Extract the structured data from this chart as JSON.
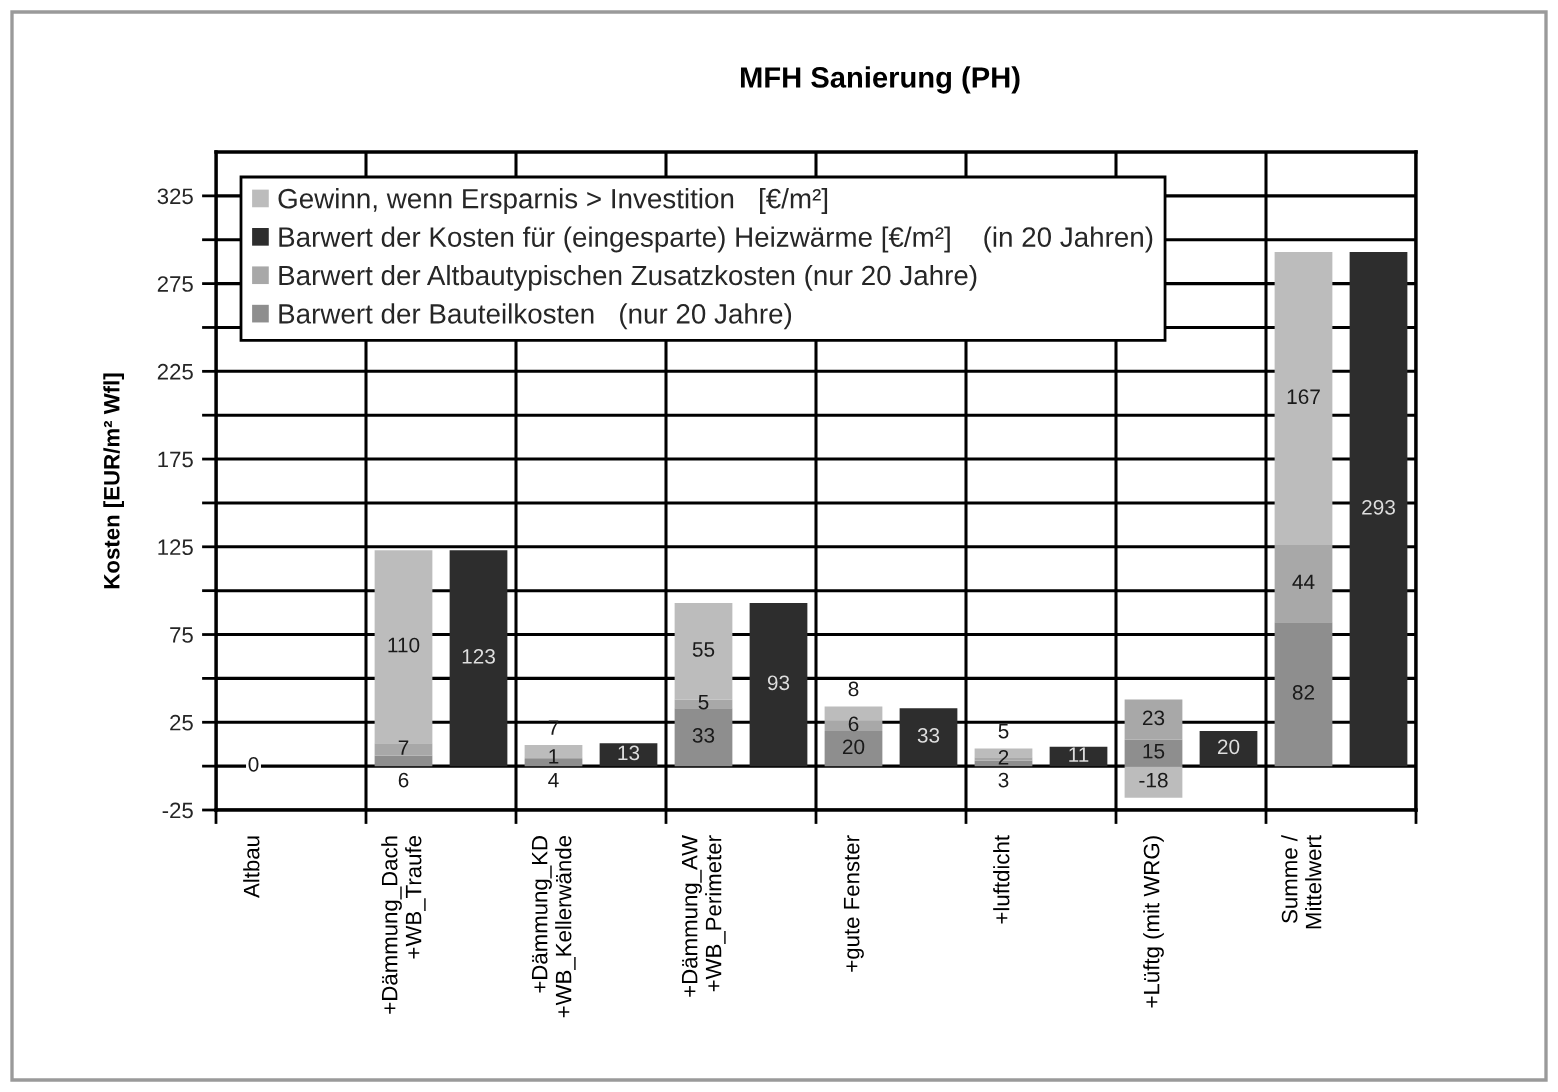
{
  "chart_data": {
    "type": "bar",
    "title": "MFH Sanierung (PH)",
    "ylabel": "Kosten [EUR/m² Wfl]",
    "categories": [
      "Altbau",
      null,
      "+Dämmung_Dach\n+WB_Traufe",
      null,
      "+Dämmung_KD\n+WB_Kellerwände",
      null,
      "+Dämmung_AW\n+WB_Perimeter",
      null,
      "+gute Fenster",
      null,
      "+luftdicht",
      null,
      "+Lüftg (mit WRG)",
      null,
      "Summe /\nMittelwert",
      null
    ],
    "stacked": true,
    "series": [
      {
        "name": "Barwert der Bauteilkosten   (nur 20 Jahre)",
        "color": "#8e8e8e",
        "values": [
          0,
          null,
          6,
          null,
          4,
          null,
          33,
          null,
          20,
          null,
          3,
          null,
          15,
          null,
          82,
          null
        ],
        "value_labels": [
          "0",
          null,
          "6",
          null,
          "4",
          null,
          "33",
          null,
          "20",
          null,
          "3",
          null,
          "15",
          null,
          "82",
          null
        ]
      },
      {
        "name": "Barwert der Altbautypischen Zusatzkosten (nur 20 Jahre)",
        "color": "#a8a8a8",
        "values": [
          0,
          null,
          7,
          null,
          1,
          null,
          5,
          null,
          6,
          null,
          2,
          null,
          23,
          null,
          44,
          null
        ],
        "value_labels": [
          null,
          null,
          "7",
          null,
          "1",
          null,
          "5",
          null,
          "6",
          null,
          "2",
          null,
          "23",
          null,
          "44",
          null
        ]
      },
      {
        "name": "Barwert der Kosten für (eingesparte) Heizwärme [€/m²]    (in 20 Jahren)",
        "color": "#2d2d2d",
        "values": [
          null,
          0,
          null,
          123,
          null,
          13,
          null,
          93,
          null,
          33,
          null,
          11,
          null,
          20,
          null,
          293
        ],
        "value_labels": [
          null,
          null,
          null,
          "123",
          null,
          "13",
          null,
          "93",
          null,
          "33",
          null,
          "11",
          null,
          "20",
          null,
          "293"
        ]
      },
      {
        "name": "Gewinn, wenn Ersparnis > Investition   [€/m²]",
        "color": "#bcbcbc",
        "values": [
          0,
          null,
          110,
          null,
          7,
          null,
          55,
          null,
          8,
          null,
          5,
          null,
          -18,
          null,
          167,
          null
        ],
        "value_labels": [
          null,
          null,
          "110",
          null,
          "7",
          null,
          "55",
          null,
          "8",
          null,
          "5",
          null,
          "-18",
          null,
          "167",
          null
        ]
      }
    ],
    "ylim": [
      -25,
      350
    ],
    "yticks": [
      -25,
      {
        "value": 0,
        "label": null
      },
      25,
      {
        "value": 50,
        "label": null
      },
      75,
      {
        "value": 100,
        "label": null
      },
      125,
      {
        "value": 150,
        "label": null
      },
      175,
      {
        "value": 200,
        "label": null
      },
      225,
      {
        "value": 250,
        "label": null
      },
      275,
      {
        "value": 300,
        "label": null
      },
      325
    ],
    "grid": true,
    "legend": "top left"
  }
}
